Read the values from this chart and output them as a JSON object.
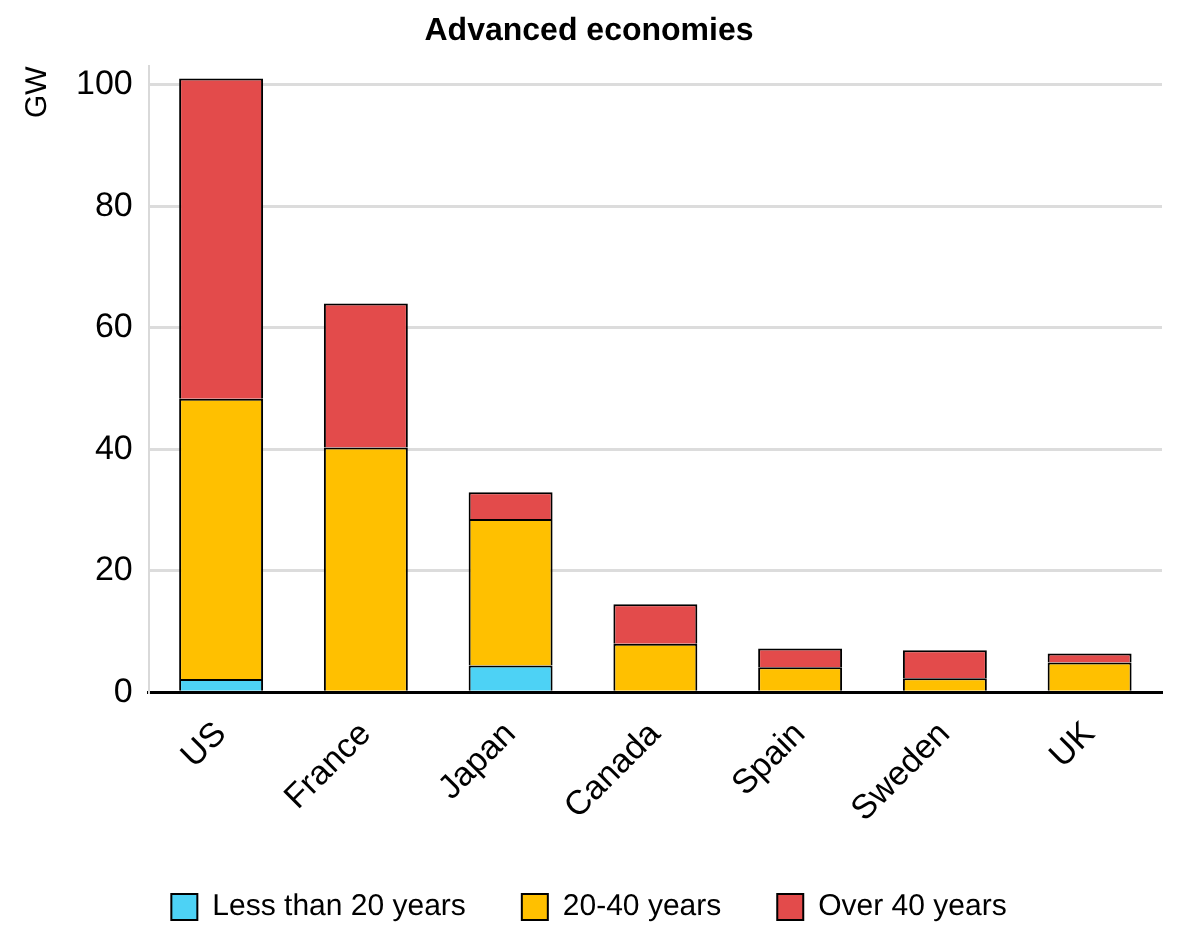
{
  "chart_data": {
    "type": "bar",
    "title": "Advanced economies",
    "ylabel": "GW",
    "categories": [
      "US",
      "France",
      "Japan",
      "Canada",
      "Spain",
      "Sweden",
      "UK"
    ],
    "series": [
      {
        "name": "Less than 20 years",
        "color": "#4dd2f5",
        "values": [
          2.2,
          0,
          4.4,
          0,
          0,
          0,
          0
        ]
      },
      {
        "name": "20-40 years",
        "color": "#ffc000",
        "values": [
          46.1,
          40.3,
          24.1,
          8.0,
          4.1,
          2.3,
          4.9
        ]
      },
      {
        "name": "Over 40 years",
        "color": "#e34b4b",
        "values": [
          52.7,
          23.7,
          4.4,
          6.5,
          3.1,
          4.6,
          1.5
        ]
      }
    ],
    "stacked": true,
    "ylim": [
      0,
      103
    ],
    "yticks": [
      0,
      20,
      40,
      60,
      80,
      100
    ],
    "grid": "y",
    "legend": "bottom"
  }
}
